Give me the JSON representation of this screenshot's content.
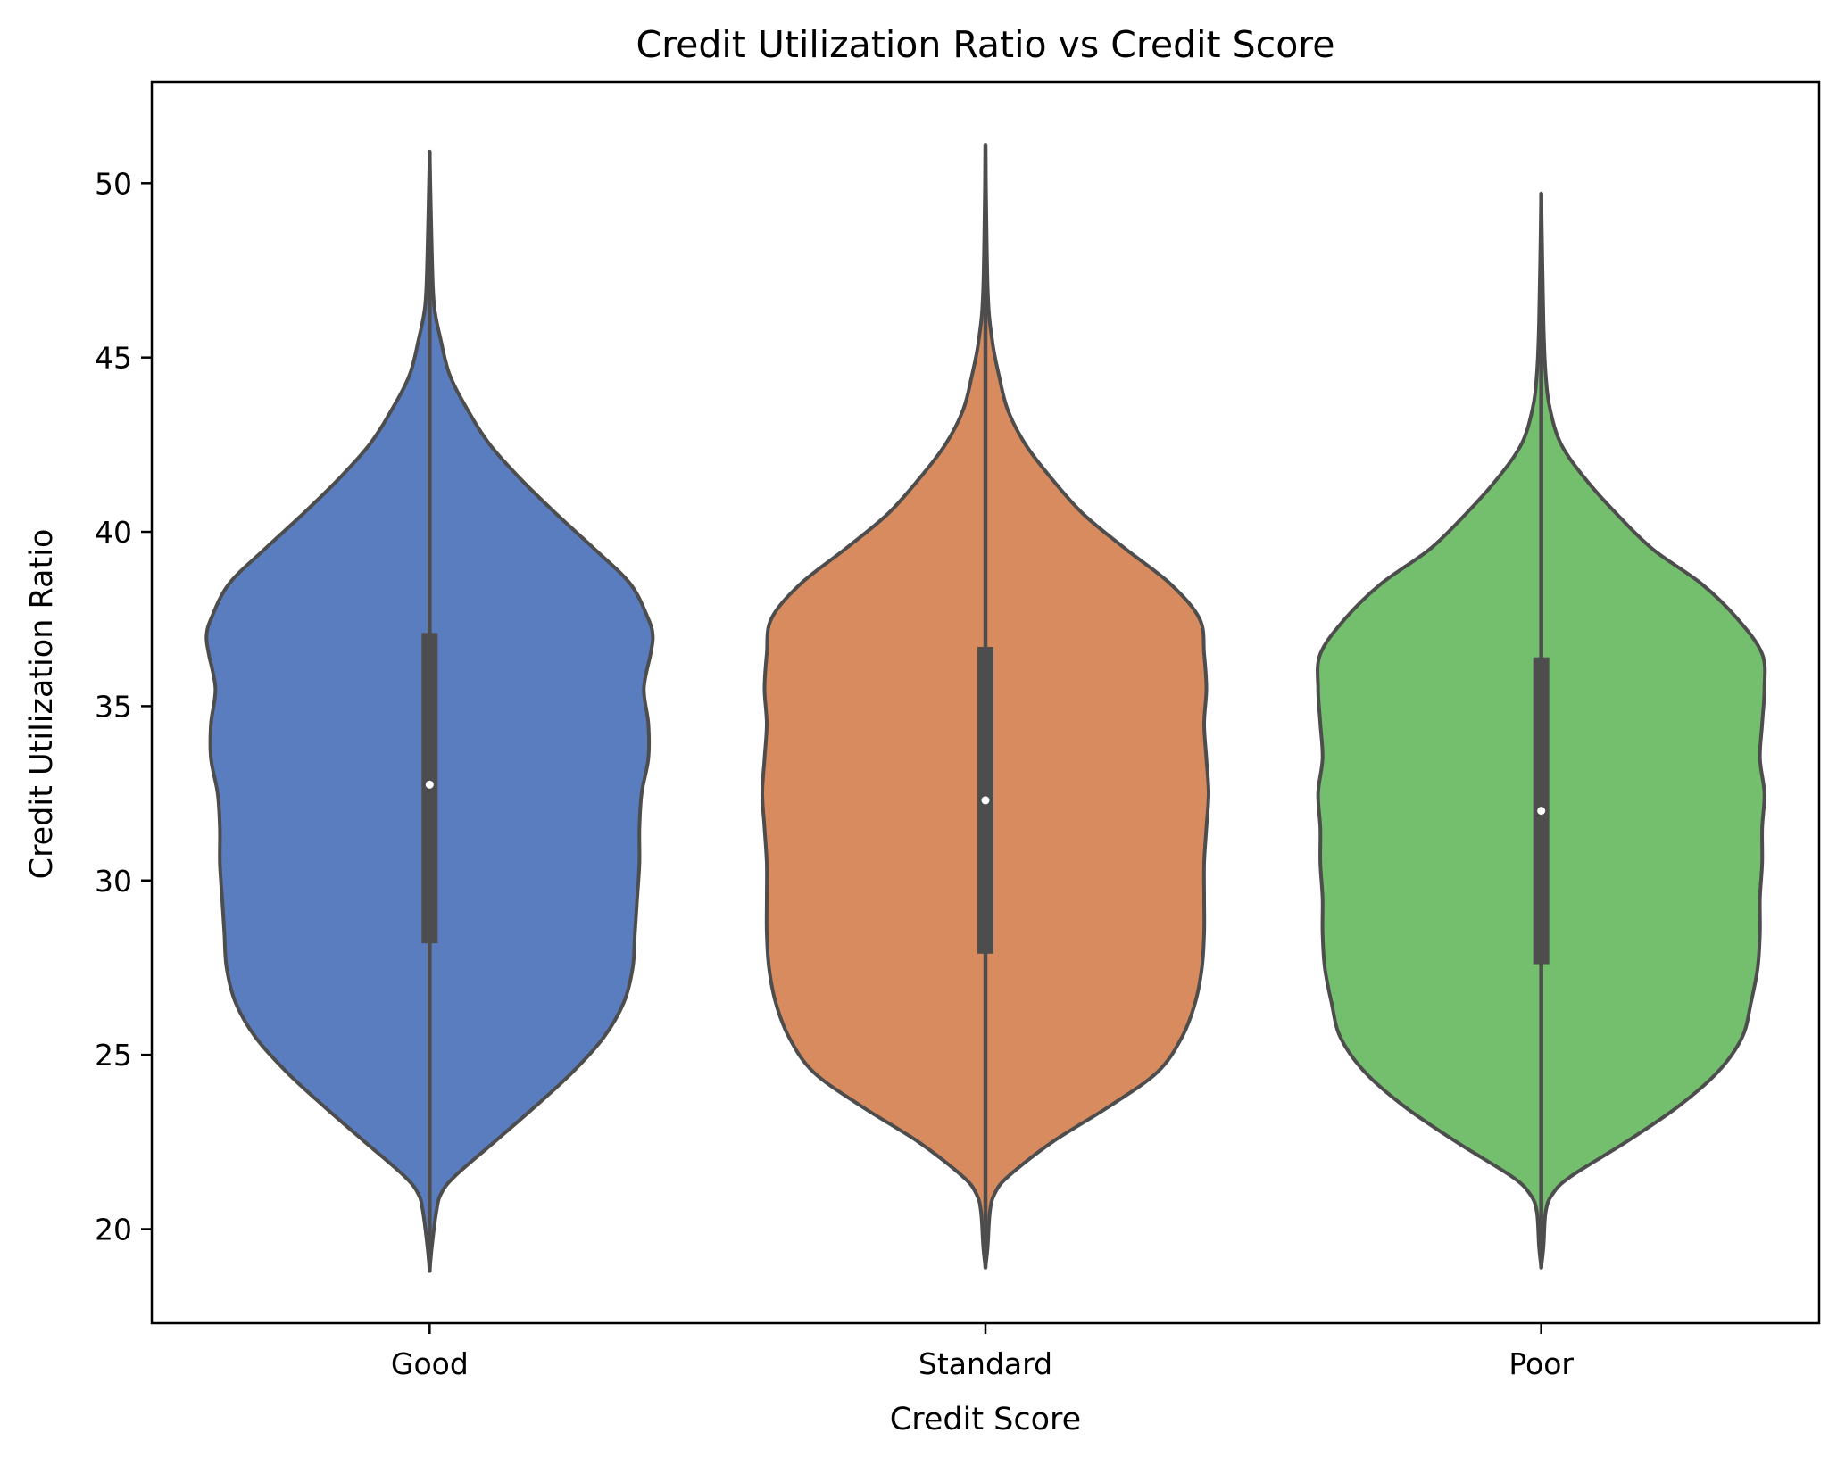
{
  "chart_data": {
    "type": "violin",
    "title": "Credit Utilization Ratio vs Credit Score",
    "xlabel": "Credit Score",
    "ylabel": "Credit Utilization Ratio",
    "ylim": [
      17.3,
      52.9
    ],
    "yticks": [
      20,
      25,
      30,
      35,
      40,
      45,
      50
    ],
    "ytick_labels": [
      "20",
      "25",
      "30",
      "35",
      "40",
      "45",
      "50"
    ],
    "grid": false,
    "legend": "none",
    "outline_color": "#4d4d4d",
    "categories": [
      "Good",
      "Standard",
      "Poor"
    ],
    "series": [
      {
        "category": "Good",
        "color": "#5a7dbf",
        "min": 18.8,
        "q1": 28.2,
        "median": 32.75,
        "q3": 37.1,
        "max": 50.9,
        "density": [
          [
            18.8,
            0.0
          ],
          [
            19.5,
            0.01
          ],
          [
            20.5,
            0.03
          ],
          [
            21.0,
            0.05
          ],
          [
            21.5,
            0.11
          ],
          [
            22.5,
            0.29
          ],
          [
            23.5,
            0.47
          ],
          [
            24.5,
            0.64
          ],
          [
            25.5,
            0.78
          ],
          [
            26.5,
            0.87
          ],
          [
            27.5,
            0.91
          ],
          [
            28.5,
            0.92
          ],
          [
            29.5,
            0.93
          ],
          [
            30.5,
            0.94
          ],
          [
            31.5,
            0.94
          ],
          [
            32.5,
            0.95
          ],
          [
            33.5,
            0.98
          ],
          [
            34.5,
            0.98
          ],
          [
            35.5,
            0.96
          ],
          [
            36.5,
            0.99
          ],
          [
            37.0,
            1.0
          ],
          [
            37.5,
            0.98
          ],
          [
            38.5,
            0.9
          ],
          [
            39.5,
            0.74
          ],
          [
            40.5,
            0.57
          ],
          [
            41.5,
            0.41
          ],
          [
            42.5,
            0.27
          ],
          [
            43.5,
            0.17
          ],
          [
            44.5,
            0.09
          ],
          [
            45.5,
            0.05
          ],
          [
            46.5,
            0.02
          ],
          [
            48.0,
            0.01
          ],
          [
            50.9,
            0.0
          ]
        ]
      },
      {
        "category": "Standard",
        "color": "#d88b5f",
        "min": 18.9,
        "q1": 27.9,
        "median": 32.3,
        "q3": 36.7,
        "max": 51.1,
        "density": [
          [
            18.9,
            0.0
          ],
          [
            19.5,
            0.01
          ],
          [
            20.5,
            0.02
          ],
          [
            21.0,
            0.04
          ],
          [
            21.5,
            0.1
          ],
          [
            22.5,
            0.3
          ],
          [
            23.5,
            0.55
          ],
          [
            24.5,
            0.77
          ],
          [
            25.5,
            0.88
          ],
          [
            26.5,
            0.94
          ],
          [
            27.5,
            0.97
          ],
          [
            28.5,
            0.98
          ],
          [
            29.5,
            0.98
          ],
          [
            30.5,
            0.98
          ],
          [
            31.5,
            0.99
          ],
          [
            32.5,
            1.0
          ],
          [
            33.5,
            0.99
          ],
          [
            34.5,
            0.98
          ],
          [
            35.5,
            0.99
          ],
          [
            36.5,
            0.98
          ],
          [
            37.5,
            0.96
          ],
          [
            38.5,
            0.83
          ],
          [
            39.5,
            0.63
          ],
          [
            40.5,
            0.44
          ],
          [
            41.5,
            0.3
          ],
          [
            42.5,
            0.18
          ],
          [
            43.5,
            0.1
          ],
          [
            44.5,
            0.06
          ],
          [
            45.5,
            0.03
          ],
          [
            47.0,
            0.01
          ],
          [
            51.1,
            0.0
          ]
        ]
      },
      {
        "category": "Poor",
        "color": "#74bf6e",
        "min": 18.9,
        "q1": 27.6,
        "median": 32.0,
        "q3": 36.4,
        "max": 49.7,
        "density": [
          [
            18.9,
            0.0
          ],
          [
            19.5,
            0.01
          ],
          [
            20.5,
            0.02
          ],
          [
            21.0,
            0.05
          ],
          [
            21.5,
            0.13
          ],
          [
            22.5,
            0.38
          ],
          [
            23.5,
            0.61
          ],
          [
            24.5,
            0.79
          ],
          [
            25.5,
            0.9
          ],
          [
            26.5,
            0.94
          ],
          [
            27.5,
            0.97
          ],
          [
            28.5,
            0.98
          ],
          [
            29.5,
            0.98
          ],
          [
            30.5,
            0.99
          ],
          [
            31.5,
            0.99
          ],
          [
            32.5,
            1.0
          ],
          [
            33.5,
            0.98
          ],
          [
            34.5,
            0.99
          ],
          [
            35.5,
            1.0
          ],
          [
            36.5,
            0.99
          ],
          [
            37.5,
            0.88
          ],
          [
            38.5,
            0.72
          ],
          [
            39.5,
            0.5
          ],
          [
            40.5,
            0.34
          ],
          [
            41.5,
            0.2
          ],
          [
            42.5,
            0.09
          ],
          [
            43.5,
            0.04
          ],
          [
            44.5,
            0.02
          ],
          [
            46.0,
            0.01
          ],
          [
            49.7,
            0.0
          ]
        ]
      }
    ]
  }
}
